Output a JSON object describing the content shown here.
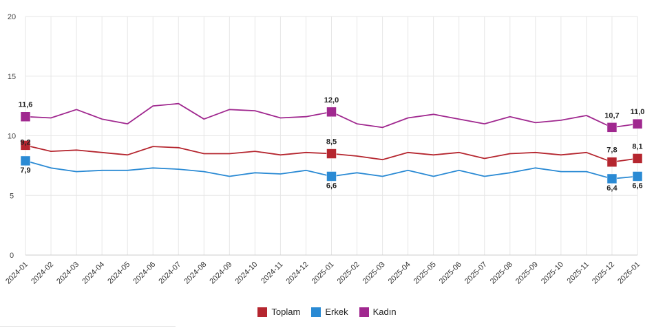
{
  "chart_data": {
    "type": "line",
    "title": "",
    "xlabel": "",
    "ylabel": "",
    "ylim": [
      0,
      20
    ],
    "y_ticks": [
      "0",
      "5",
      "10",
      "15",
      "20"
    ],
    "grid": true,
    "categories": [
      "2024-01",
      "2024-02",
      "2024-03",
      "2024-04",
      "2024-05",
      "2024-06",
      "2024-07",
      "2024-08",
      "2024-09",
      "2024-10",
      "2024-11",
      "2024-12",
      "2025-01",
      "2025-02",
      "2025-03",
      "2025-04",
      "2025-05",
      "2025-06",
      "2025-07",
      "2025-08",
      "2025-09",
      "2025-10",
      "2025-11",
      "2025-12",
      "2026-01"
    ],
    "series": [
      {
        "name": "Toplam",
        "color": "#b5262f",
        "values": [
          9.2,
          8.7,
          8.8,
          8.6,
          8.4,
          9.1,
          9.0,
          8.5,
          8.5,
          8.7,
          8.4,
          8.6,
          8.5,
          8.3,
          8.0,
          8.6,
          8.4,
          8.6,
          8.1,
          8.5,
          8.6,
          8.4,
          8.6,
          7.8,
          8.1
        ],
        "labels": [
          {
            "index": 0,
            "text": "9,2"
          },
          {
            "index": 12,
            "text": "8,5"
          },
          {
            "index": 23,
            "text": "7,8"
          },
          {
            "index": 24,
            "text": "8,1"
          }
        ]
      },
      {
        "name": "Erkek",
        "color": "#2a8ad4",
        "values": [
          7.9,
          7.3,
          7.0,
          7.1,
          7.1,
          7.3,
          7.2,
          7.0,
          6.6,
          6.9,
          6.8,
          7.1,
          6.6,
          6.9,
          6.6,
          7.1,
          6.6,
          7.1,
          6.6,
          6.9,
          7.3,
          7.0,
          7.0,
          6.4,
          6.6
        ],
        "labels": [
          {
            "index": 0,
            "text": "7,9"
          },
          {
            "index": 12,
            "text": "6,6"
          },
          {
            "index": 23,
            "text": "6,4"
          },
          {
            "index": 24,
            "text": "6,6"
          }
        ]
      },
      {
        "name": "Kadın",
        "color": "#a0288f",
        "values": [
          11.6,
          11.5,
          12.2,
          11.4,
          11.0,
          12.5,
          12.7,
          11.4,
          12.2,
          12.1,
          11.5,
          11.6,
          12.0,
          11.0,
          10.7,
          11.5,
          11.8,
          11.4,
          11.0,
          11.6,
          11.1,
          11.3,
          11.7,
          10.7,
          11.0
        ],
        "labels": [
          {
            "index": 0,
            "text": "11,6"
          },
          {
            "index": 12,
            "text": "12,0"
          },
          {
            "index": 23,
            "text": "10,7"
          },
          {
            "index": 24,
            "text": "11,0"
          }
        ]
      }
    ],
    "marker_indices": [
      0,
      12,
      23,
      24
    ],
    "legend_position": "bottom-center"
  }
}
